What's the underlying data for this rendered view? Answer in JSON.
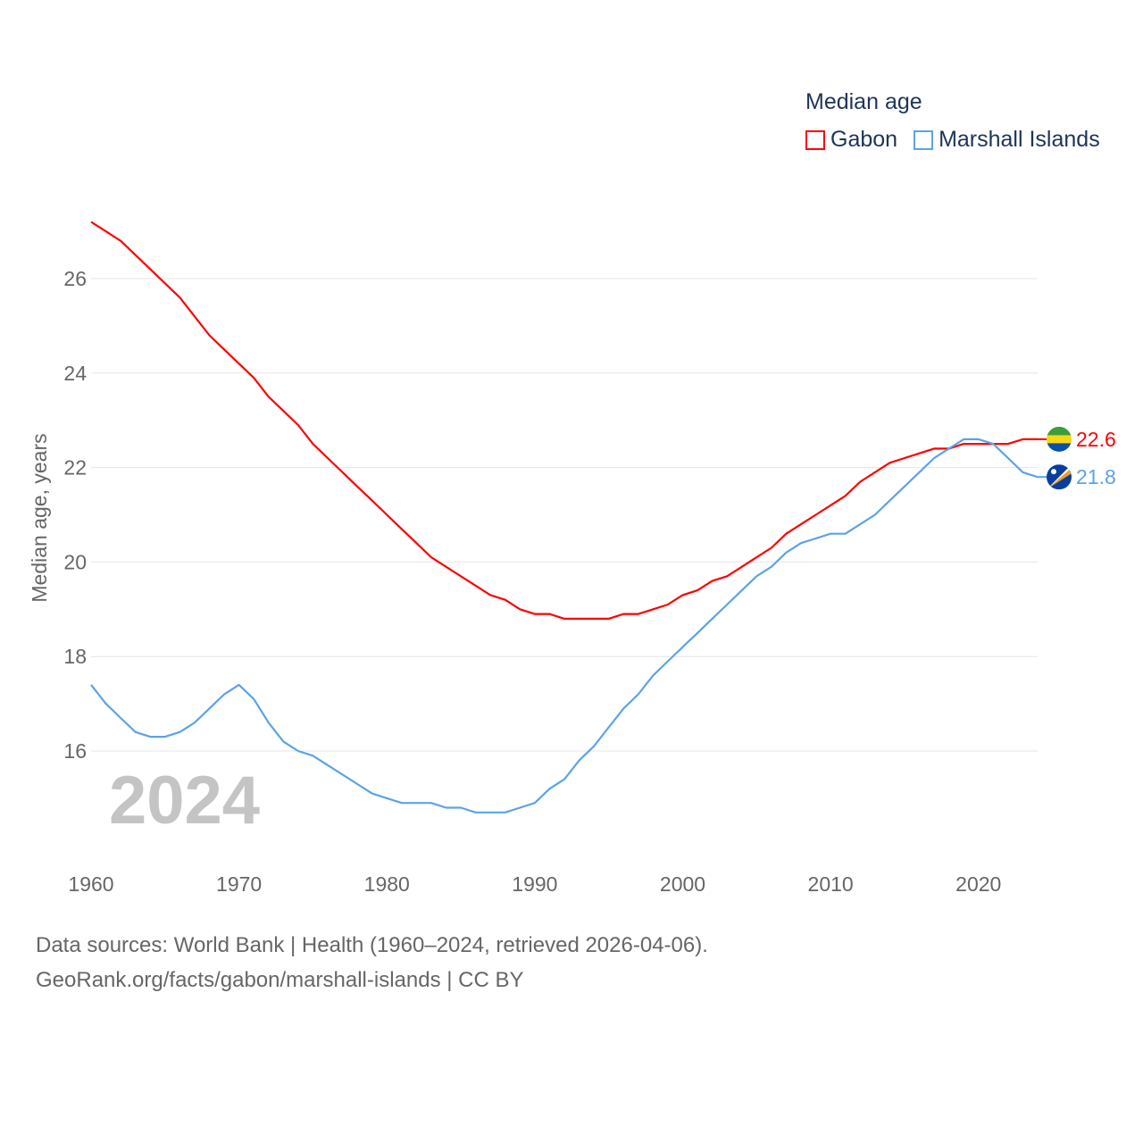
{
  "chart_data": {
    "type": "line",
    "title": "Median age",
    "xlabel": "",
    "ylabel": "Median age, years",
    "xlim": [
      1960,
      2024
    ],
    "ylim": [
      14,
      27.5
    ],
    "yticks": [
      16,
      18,
      20,
      22,
      24,
      26
    ],
    "xticks": [
      1960,
      1970,
      1980,
      1990,
      2000,
      2010,
      2020
    ],
    "grid": true,
    "legend_placement": "top-right",
    "year_watermark": "2024",
    "x": [
      1960,
      1961,
      1962,
      1963,
      1964,
      1965,
      1966,
      1967,
      1968,
      1969,
      1970,
      1971,
      1972,
      1973,
      1974,
      1975,
      1976,
      1977,
      1978,
      1979,
      1980,
      1981,
      1982,
      1983,
      1984,
      1985,
      1986,
      1987,
      1988,
      1989,
      1990,
      1991,
      1992,
      1993,
      1994,
      1995,
      1996,
      1997,
      1998,
      1999,
      2000,
      2001,
      2002,
      2003,
      2004,
      2005,
      2006,
      2007,
      2008,
      2009,
      2010,
      2011,
      2012,
      2013,
      2014,
      2015,
      2016,
      2017,
      2018,
      2019,
      2020,
      2021,
      2022,
      2023,
      2024
    ],
    "series": [
      {
        "name": "Gabon",
        "color": "#ff0000",
        "end_label": "22.6",
        "values": [
          27.2,
          27.0,
          26.8,
          26.5,
          26.2,
          25.9,
          25.6,
          25.2,
          24.8,
          24.5,
          24.2,
          23.9,
          23.5,
          23.2,
          22.9,
          22.5,
          22.2,
          21.9,
          21.6,
          21.3,
          21.0,
          20.7,
          20.4,
          20.1,
          19.9,
          19.7,
          19.5,
          19.3,
          19.2,
          19.0,
          18.9,
          18.9,
          18.8,
          18.8,
          18.8,
          18.8,
          18.9,
          18.9,
          19.0,
          19.1,
          19.3,
          19.4,
          19.6,
          19.7,
          19.9,
          20.1,
          20.3,
          20.6,
          20.8,
          21.0,
          21.2,
          21.4,
          21.7,
          21.9,
          22.1,
          22.2,
          22.3,
          22.4,
          22.4,
          22.5,
          22.5,
          22.5,
          22.5,
          22.6,
          22.6
        ]
      },
      {
        "name": "Marshall Islands",
        "color": "#5ba3e8",
        "end_label": "21.8",
        "values": [
          17.4,
          17.0,
          16.7,
          16.4,
          16.3,
          16.3,
          16.4,
          16.6,
          16.9,
          17.2,
          17.4,
          17.1,
          16.6,
          16.2,
          16.0,
          15.9,
          15.7,
          15.5,
          15.3,
          15.1,
          15.0,
          14.9,
          14.9,
          14.9,
          14.8,
          14.8,
          14.7,
          14.7,
          14.7,
          14.8,
          14.9,
          15.2,
          15.4,
          15.8,
          16.1,
          16.5,
          16.9,
          17.2,
          17.6,
          17.9,
          18.2,
          18.5,
          18.8,
          19.1,
          19.4,
          19.7,
          19.9,
          20.2,
          20.4,
          20.5,
          20.6,
          20.6,
          20.8,
          21.0,
          21.3,
          21.6,
          21.9,
          22.2,
          22.4,
          22.6,
          22.6,
          22.5,
          22.2,
          21.9,
          21.8
        ]
      }
    ]
  },
  "source": {
    "line1": "Data sources: World Bank | Health (1960–2024, retrieved 2026-04-06).",
    "line2": "GeoRank.org/facts/gabon/marshall-islands | CC BY"
  }
}
